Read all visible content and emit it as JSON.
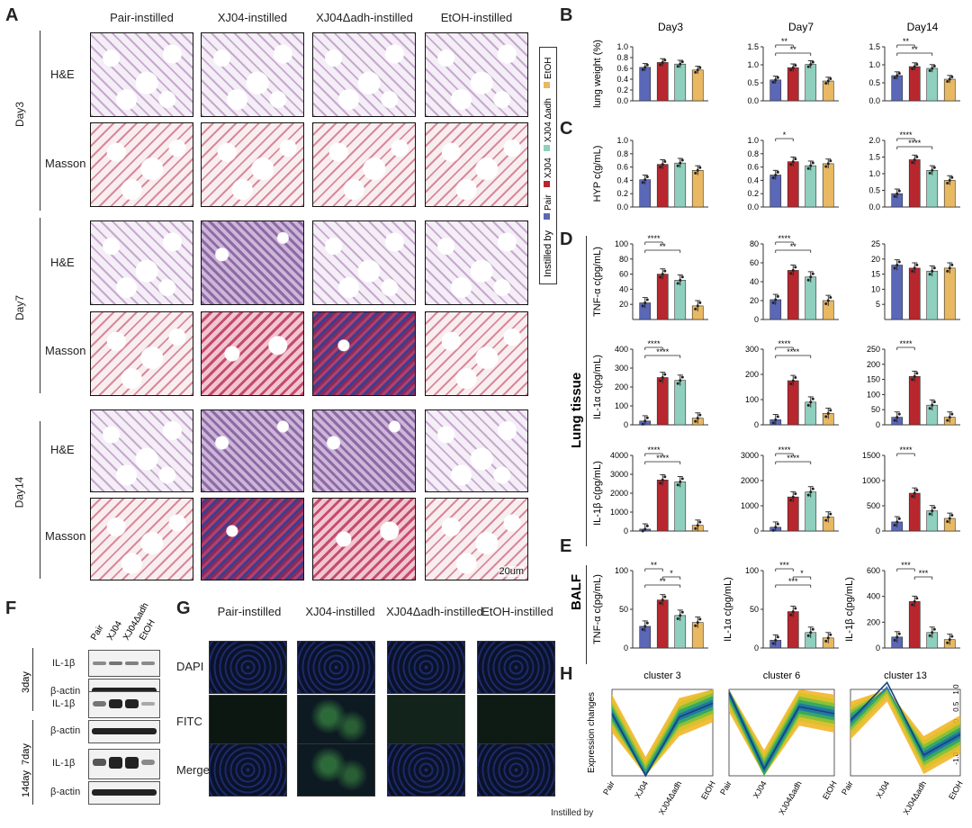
{
  "panels": {
    "A": "A",
    "B": "B",
    "C": "C",
    "D": "D",
    "E": "E",
    "F": "F",
    "G": "G",
    "H": "H"
  },
  "panelA": {
    "columns": [
      "Pair-instilled",
      "XJ04-instilled",
      "XJ04Δadh-instilled",
      "EtOH-instilled"
    ],
    "days": [
      "Day3",
      "Day7",
      "Day14"
    ],
    "stains": [
      "H&E",
      "Masson"
    ],
    "scalebar": "20um"
  },
  "legend": {
    "title": "Instilled by",
    "items": [
      "Pair",
      "XJ04",
      "XJ04 Δadh",
      "EtOH"
    ]
  },
  "colors": {
    "Pair": "#5b67b7",
    "XJ04": "#b8262e",
    "XJ04Δadh": "#8fcfbd",
    "EtOH": "#e8b863"
  },
  "panelB": {
    "titles": [
      "Day3",
      "Day7",
      "Day14"
    ],
    "ylabel": "lung weight (%)"
  },
  "panelC": {
    "ylabel": "HYP c(g/mL)"
  },
  "panelD": {
    "section": "Lung tissue",
    "ylabels": [
      "TNF-α c(pg/mL)",
      "IL-1α c(pg/mL)",
      "IL-1β c(pg/mL)"
    ]
  },
  "panelE": {
    "section": "BALF",
    "ylabels": [
      "TNF-α c(pg/mL)",
      "IL-1α c(pg/mL)",
      "IL-1β c(pg/mL)"
    ]
  },
  "panelF": {
    "lanes": [
      "Pair",
      "XJ04",
      "XJ04Δadh",
      "EtOH"
    ],
    "groups": [
      "3day",
      "7day",
      "14day"
    ],
    "target": "IL-1β",
    "control": "β-actin"
  },
  "panelG": {
    "columns": [
      "Pair-instilled",
      "XJ04-instilled",
      "XJ04Δadh-instilled",
      "EtOH-instilled"
    ],
    "rows": [
      "DAPI",
      "FITC",
      "Merge"
    ]
  },
  "panelH": {
    "titles": [
      "cluster 3",
      "cluster 6",
      "cluster 13"
    ],
    "ylabel": "Expression changes",
    "xcats": [
      "Pair",
      "XJ04",
      "XJ04Δadh",
      "EtOH"
    ],
    "xlabel": "Instilled by"
  },
  "chart_data": [
    {
      "id": "B1",
      "type": "bar",
      "title": "Day3",
      "ylabel": "lung weight (%)",
      "categories": [
        "Pair",
        "XJ04",
        "XJ04Δadh",
        "EtOH"
      ],
      "values": [
        0.62,
        0.71,
        0.68,
        0.57
      ],
      "ylim": [
        0,
        1.0
      ],
      "yticks": [
        "0.0",
        "0.2",
        "0.4",
        "0.6",
        "0.8",
        "1.0"
      ],
      "sig": []
    },
    {
      "id": "B2",
      "type": "bar",
      "title": "Day7",
      "categories": [
        "Pair",
        "XJ04",
        "XJ04Δadh",
        "EtOH"
      ],
      "values": [
        0.58,
        0.92,
        1.01,
        0.55
      ],
      "ylim": [
        0,
        1.5
      ],
      "yticks": [
        "0.0",
        "0.5",
        "1.0",
        "1.5"
      ],
      "sig": [
        [
          0,
          1,
          "**"
        ],
        [
          0,
          2,
          "**"
        ]
      ]
    },
    {
      "id": "B3",
      "type": "bar",
      "title": "Day14",
      "categories": [
        "Pair",
        "XJ04",
        "XJ04Δadh",
        "EtOH"
      ],
      "values": [
        0.7,
        0.95,
        0.9,
        0.6
      ],
      "ylim": [
        0,
        1.5
      ],
      "yticks": [
        "0.0",
        "0.5",
        "1.0",
        "1.5"
      ],
      "sig": [
        [
          0,
          1,
          "**"
        ],
        [
          0,
          2,
          "**"
        ]
      ]
    },
    {
      "id": "C1",
      "type": "bar",
      "ylabel": "HYP c(g/mL)",
      "categories": [
        "Pair",
        "XJ04",
        "XJ04Δadh",
        "EtOH"
      ],
      "values": [
        0.41,
        0.64,
        0.66,
        0.55
      ],
      "ylim": [
        0,
        1.0
      ],
      "yticks": [
        "0.0",
        "0.2",
        "0.4",
        "0.6",
        "0.8",
        "1.0"
      ],
      "sig": []
    },
    {
      "id": "C2",
      "type": "bar",
      "categories": [
        "Pair",
        "XJ04",
        "XJ04Δadh",
        "EtOH"
      ],
      "values": [
        0.48,
        0.68,
        0.62,
        0.65
      ],
      "ylim": [
        0,
        1.0
      ],
      "yticks": [
        "0.0",
        "0.2",
        "0.4",
        "0.6",
        "0.8",
        "1.0"
      ],
      "sig": [
        [
          0,
          1,
          "*"
        ]
      ]
    },
    {
      "id": "C3",
      "type": "bar",
      "categories": [
        "Pair",
        "XJ04",
        "XJ04Δadh",
        "EtOH"
      ],
      "values": [
        0.4,
        1.42,
        1.1,
        0.8
      ],
      "ylim": [
        0,
        2.0
      ],
      "yticks": [
        "0.0",
        "0.5",
        "1.0",
        "1.5",
        "2.0"
      ],
      "sig": [
        [
          0,
          1,
          "****"
        ],
        [
          0,
          2,
          "****"
        ]
      ]
    },
    {
      "id": "D1",
      "type": "bar",
      "ylabel": "TNF-α c(pg/mL)",
      "categories": [
        "Pair",
        "XJ04",
        "XJ04Δadh",
        "EtOH"
      ],
      "values": [
        22,
        60,
        52,
        18
      ],
      "ylim": [
        0,
        100
      ],
      "yticks": [
        "20",
        "40",
        "60",
        "80",
        "100"
      ],
      "sig": [
        [
          0,
          1,
          "****"
        ],
        [
          0,
          2,
          "**"
        ]
      ]
    },
    {
      "id": "D2",
      "type": "bar",
      "categories": [
        "Pair",
        "XJ04",
        "XJ04Δadh",
        "EtOH"
      ],
      "values": [
        21,
        52,
        45,
        20
      ],
      "ylim": [
        0,
        80
      ],
      "yticks": [
        "0",
        "20",
        "40",
        "60",
        "80"
      ],
      "sig": [
        [
          0,
          1,
          "****"
        ],
        [
          0,
          2,
          "**"
        ]
      ]
    },
    {
      "id": "D3",
      "type": "bar",
      "categories": [
        "Pair",
        "XJ04",
        "XJ04Δadh",
        "EtOH"
      ],
      "values": [
        18,
        17,
        16,
        17
      ],
      "ylim": [
        0,
        25
      ],
      "yticks": [
        "5",
        "10",
        "15",
        "20",
        "25"
      ],
      "sig": []
    },
    {
      "id": "D4",
      "type": "bar",
      "ylabel": "IL-1α c(pg/mL)",
      "categories": [
        "Pair",
        "XJ04",
        "XJ04Δadh",
        "EtOH"
      ],
      "values": [
        20,
        250,
        235,
        35
      ],
      "ylim": [
        0,
        400
      ],
      "yticks": [
        "0",
        "100",
        "200",
        "300",
        "400"
      ],
      "sig": [
        [
          0,
          1,
          "****"
        ],
        [
          0,
          2,
          "****"
        ]
      ]
    },
    {
      "id": "D5",
      "type": "bar",
      "categories": [
        "Pair",
        "XJ04",
        "XJ04Δadh",
        "EtOH"
      ],
      "values": [
        20,
        175,
        90,
        45
      ],
      "ylim": [
        0,
        300
      ],
      "yticks": [
        "0",
        "100",
        "200",
        "300"
      ],
      "sig": [
        [
          0,
          1,
          "****"
        ],
        [
          0,
          2,
          "****"
        ]
      ]
    },
    {
      "id": "D6",
      "type": "bar",
      "categories": [
        "Pair",
        "XJ04",
        "XJ04Δadh",
        "EtOH"
      ],
      "values": [
        25,
        160,
        65,
        25
      ],
      "ylim": [
        0,
        250
      ],
      "yticks": [
        "0",
        "50",
        "100",
        "150",
        "200",
        "250"
      ],
      "sig": [
        [
          0,
          1,
          "****"
        ]
      ]
    },
    {
      "id": "D7",
      "type": "bar",
      "ylabel": "IL-1β c(pg/mL)",
      "categories": [
        "Pair",
        "XJ04",
        "XJ04Δadh",
        "EtOH"
      ],
      "values": [
        100,
        2700,
        2600,
        300
      ],
      "ylim": [
        0,
        4000
      ],
      "yticks": [
        "0",
        "1000",
        "2000",
        "3000",
        "4000"
      ],
      "sig": [
        [
          0,
          1,
          "****"
        ],
        [
          0,
          2,
          "****"
        ]
      ]
    },
    {
      "id": "D8",
      "type": "bar",
      "categories": [
        "Pair",
        "XJ04",
        "XJ04Δadh",
        "EtOH"
      ],
      "values": [
        150,
        1350,
        1550,
        550
      ],
      "ylim": [
        0,
        3000
      ],
      "yticks": [
        "0",
        "1000",
        "2000",
        "3000"
      ],
      "sig": [
        [
          0,
          1,
          "****"
        ],
        [
          0,
          2,
          "****"
        ]
      ]
    },
    {
      "id": "D9",
      "type": "bar",
      "categories": [
        "Pair",
        "XJ04",
        "XJ04Δadh",
        "EtOH"
      ],
      "values": [
        180,
        750,
        400,
        250
      ],
      "ylim": [
        0,
        1500
      ],
      "yticks": [
        "0",
        "500",
        "1000",
        "1500"
      ],
      "sig": [
        [
          0,
          1,
          "****"
        ]
      ]
    },
    {
      "id": "E1",
      "type": "bar",
      "ylabel": "TNF-α c(pg/mL)",
      "categories": [
        "Pair",
        "XJ04",
        "XJ04Δadh",
        "EtOH"
      ],
      "values": [
        28,
        62,
        42,
        33
      ],
      "ylim": [
        0,
        100
      ],
      "yticks": [
        "0",
        "50",
        "100"
      ],
      "sig": [
        [
          0,
          1,
          "**"
        ],
        [
          1,
          2,
          "*"
        ],
        [
          0,
          2,
          "**"
        ]
      ]
    },
    {
      "id": "E2",
      "type": "bar",
      "ylabel": "IL-1α c(pg/mL)",
      "categories": [
        "Pair",
        "XJ04",
        "XJ04Δadh",
        "EtOH"
      ],
      "values": [
        10,
        47,
        20,
        13
      ],
      "ylim": [
        0,
        100
      ],
      "yticks": [
        "0",
        "50",
        "100"
      ],
      "sig": [
        [
          0,
          1,
          "***"
        ],
        [
          1,
          2,
          "*"
        ],
        [
          0,
          2,
          "***"
        ]
      ]
    },
    {
      "id": "E3",
      "type": "bar",
      "ylabel": "IL-1β c(pg/mL)",
      "categories": [
        "Pair",
        "XJ04",
        "XJ04Δadh",
        "EtOH"
      ],
      "values": [
        85,
        360,
        120,
        65
      ],
      "ylim": [
        0,
        600
      ],
      "yticks": [
        "0",
        "200",
        "400",
        "600"
      ],
      "sig": [
        [
          0,
          1,
          "***"
        ],
        [
          1,
          2,
          "***"
        ]
      ]
    },
    {
      "id": "H1",
      "type": "area",
      "title": "cluster 3",
      "categories": [
        "Pair",
        "XJ04",
        "XJ04Δadh",
        "EtOH"
      ],
      "values": [
        0.3,
        -1.5,
        0.2,
        0.6
      ],
      "ylim": [
        -1.5,
        1.0
      ]
    },
    {
      "id": "H2",
      "type": "area",
      "title": "cluster 6",
      "categories": [
        "Pair",
        "XJ04",
        "XJ04Δadh",
        "EtOH"
      ],
      "values": [
        0.9,
        -1.3,
        0.5,
        0.3
      ],
      "ylim": [
        -1.5,
        1.0
      ]
    },
    {
      "id": "H3",
      "type": "area",
      "title": "cluster 13",
      "categories": [
        "Pair",
        "XJ04",
        "XJ04Δadh",
        "EtOH"
      ],
      "values": [
        0.1,
        1.2,
        -0.9,
        -0.3
      ],
      "ylim": [
        -1.5,
        1.0
      ],
      "yticks": [
        "1.0",
        "0.5",
        "0.0",
        "-0.5",
        "-1.0"
      ]
    }
  ]
}
